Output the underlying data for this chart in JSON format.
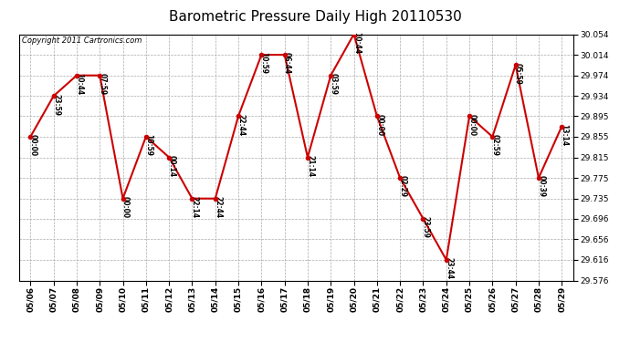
{
  "title": "Barometric Pressure Daily High 20110530",
  "copyright": "Copyright 2011 Cartronics.com",
  "dates": [
    "05/06",
    "05/07",
    "05/08",
    "05/09",
    "05/10",
    "05/11",
    "05/12",
    "05/13",
    "05/14",
    "05/15",
    "05/16",
    "05/17",
    "05/18",
    "05/19",
    "05/20",
    "05/21",
    "05/22",
    "05/23",
    "05/24",
    "05/25",
    "05/26",
    "05/27",
    "05/28",
    "05/29"
  ],
  "values": [
    29.855,
    29.934,
    29.974,
    29.974,
    29.735,
    29.855,
    29.815,
    29.735,
    29.735,
    29.895,
    30.014,
    30.014,
    29.815,
    29.974,
    30.054,
    29.895,
    29.775,
    29.696,
    29.616,
    29.895,
    29.855,
    29.994,
    29.775,
    29.875
  ],
  "time_labels": [
    "00:00",
    "23:59",
    "10:44",
    "07:59",
    "00:00",
    "10:59",
    "00:14",
    "22:14",
    "22:44",
    "22:44",
    "10:59",
    "06:44",
    "21:14",
    "03:59",
    "10:44",
    "00:00",
    "02:29",
    "23:59",
    "23:44",
    "00:00",
    "02:59",
    "05:59",
    "00:39",
    "13:14"
  ],
  "ylim_min": 29.576,
  "ylim_max": 30.054,
  "yticks": [
    29.576,
    29.616,
    29.656,
    29.696,
    29.735,
    29.775,
    29.815,
    29.855,
    29.895,
    29.934,
    29.974,
    30.014,
    30.054
  ],
  "line_color": "#cc0000",
  "marker_color": "#cc0000",
  "bg_color": "#ffffff",
  "grid_color": "#aaaaaa",
  "title_fontsize": 11,
  "label_fontsize": 5.5,
  "tick_fontsize": 6.5,
  "copyright_fontsize": 6
}
